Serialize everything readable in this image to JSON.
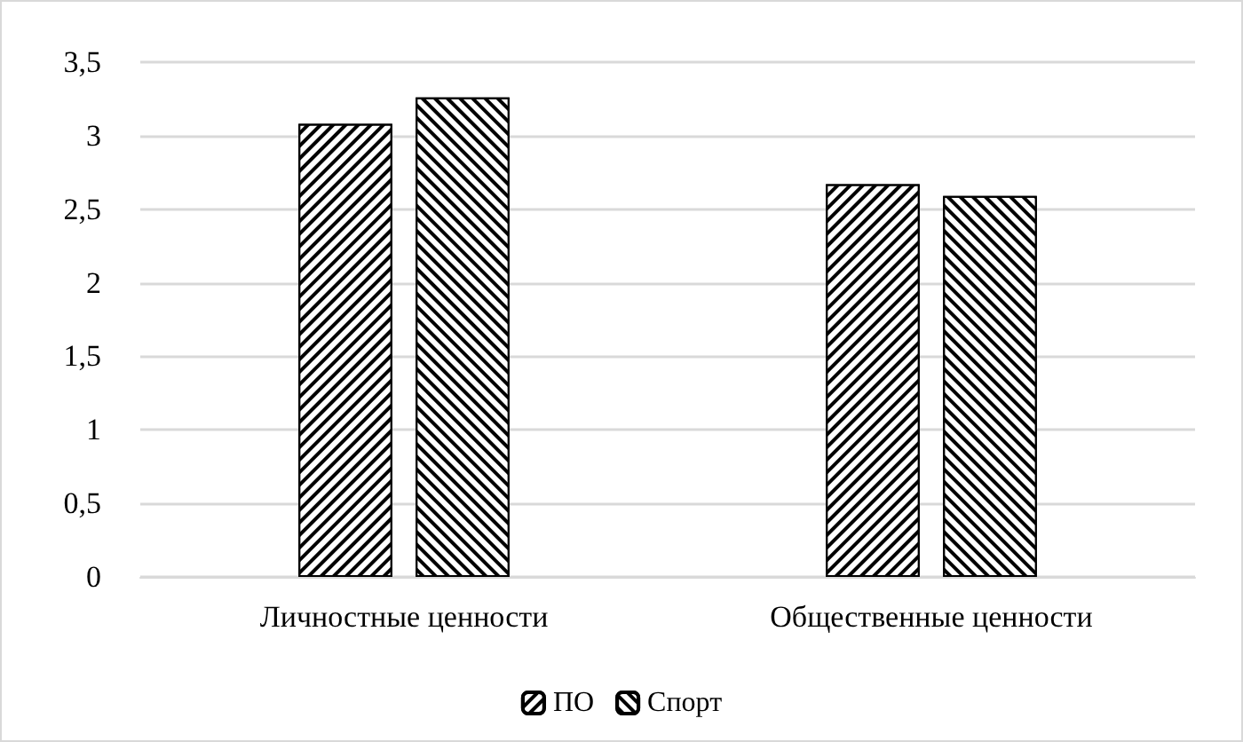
{
  "chart_data": {
    "type": "bar",
    "categories": [
      "Личностные ценности",
      "Общественные ценности"
    ],
    "series": [
      {
        "name": "ПО",
        "color": "#000000",
        "values": [
          3.08,
          2.67
        ]
      },
      {
        "name": "Спорт",
        "color": "#000000",
        "values": [
          3.26,
          2.59
        ]
      }
    ],
    "ylim": [
      0,
      3.5
    ],
    "yticks": [
      0,
      {
        "value": 0.5,
        "label": "0,5"
      },
      1,
      {
        "value": 1.5,
        "label": "1,5"
      },
      2,
      {
        "value": 2.5,
        "label": "2,5"
      },
      3,
      {
        "value": 3.5,
        "label": "3,5"
      }
    ],
    "grid": "y",
    "legend": "bottom"
  }
}
